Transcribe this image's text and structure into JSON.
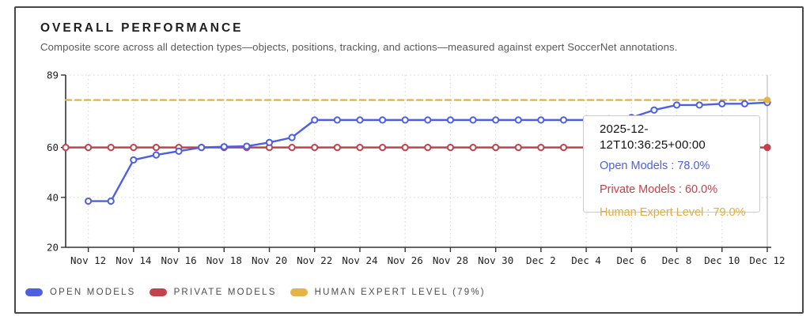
{
  "header": {
    "title": "OVERALL PERFORMANCE",
    "subtitle": "Composite score across all detection types—objects, positions, tracking, and actions—measured against expert SoccerNet annotations."
  },
  "colors": {
    "open_models": "#4d5fe3",
    "private_models": "#c4414b",
    "human_expert": "#e6b347",
    "axis": "#333333",
    "grid": "#dcdcdc",
    "crosshair": "#c4c4c4",
    "tick_label": "#222222",
    "card_border": "#474747",
    "tooltip_border": "#cccccc"
  },
  "chart_data": {
    "type": "line",
    "title": "OVERALL PERFORMANCE",
    "x": [
      "Nov 11",
      "Nov 12",
      "Nov 13",
      "Nov 14",
      "Nov 15",
      "Nov 16",
      "Nov 17",
      "Nov 18",
      "Nov 19",
      "Nov 20",
      "Nov 21",
      "Nov 22",
      "Nov 23",
      "Nov 24",
      "Nov 25",
      "Nov 26",
      "Nov 27",
      "Nov 28",
      "Nov 29",
      "Nov 30",
      "Dec 1",
      "Dec 2",
      "Dec 3",
      "Dec 4",
      "Dec 5",
      "Dec 6",
      "Dec 7",
      "Dec 8",
      "Dec 9",
      "Dec 10",
      "Dec 11",
      "Dec 12"
    ],
    "series": [
      {
        "name": "Open Models",
        "color": "#4d5fe3",
        "style": "solid",
        "markers": true,
        "values": [
          null,
          38.5,
          38.5,
          55,
          57,
          58.5,
          60,
          60.3,
          60.5,
          62,
          64,
          71,
          71,
          71,
          71,
          71,
          71,
          71,
          71,
          71,
          71,
          71,
          71,
          71,
          71.5,
          72,
          75,
          77,
          77,
          77.5,
          77.5,
          78
        ]
      },
      {
        "name": "Private Models",
        "color": "#c4414b",
        "style": "solid",
        "markers": true,
        "values": [
          60,
          60,
          60,
          60,
          60,
          60,
          60,
          60,
          60,
          60,
          60,
          60,
          60,
          60,
          60,
          60,
          60,
          60,
          60,
          60,
          60,
          60,
          60,
          60,
          60,
          60,
          60,
          60,
          60,
          60,
          60,
          60
        ]
      },
      {
        "name": "Human Expert Level",
        "color": "#e6b347",
        "style": "dashed",
        "markers": false,
        "values": [
          79,
          79,
          79,
          79,
          79,
          79,
          79,
          79,
          79,
          79,
          79,
          79,
          79,
          79,
          79,
          79,
          79,
          79,
          79,
          79,
          79,
          79,
          79,
          79,
          79,
          79,
          79,
          79,
          79,
          79,
          79,
          79
        ]
      }
    ],
    "ylim": [
      20,
      89
    ],
    "yticks": [
      20,
      40,
      60,
      89
    ],
    "xtick_labels": [
      "Nov 12",
      "Nov 14",
      "Nov 16",
      "Nov 18",
      "Nov 20",
      "Nov 22",
      "Nov 24",
      "Nov 26",
      "Nov 28",
      "Nov 30",
      "Dec 2",
      "Dec 4",
      "Dec 6",
      "Dec 8",
      "Dec 10",
      "Dec 12"
    ],
    "grid": true,
    "legend_position": "bottom",
    "crosshair_x": "Dec 12",
    "end_dots": [
      {
        "series": "Private Models",
        "value": 60
      },
      {
        "series": "Human Expert Level",
        "value": 79
      }
    ]
  },
  "tooltip": {
    "timestamp": "2025-12-12T10:36:25+00:00",
    "rows": [
      {
        "text": "Open Models : 78.0%",
        "color": "#4d5fe3"
      },
      {
        "text": "Private Models : 60.0%",
        "color": "#c4414b"
      },
      {
        "text": "Human Expert Level : 79.0%",
        "color": "#e3ab42"
      }
    ]
  },
  "legend": {
    "items": [
      {
        "label": "OPEN MODELS",
        "color": "#4d5fe3"
      },
      {
        "label": "PRIVATE MODELS",
        "color": "#c4414b"
      },
      {
        "label": "HUMAN EXPERT LEVEL (79%)",
        "color": "#e6b347"
      }
    ]
  }
}
